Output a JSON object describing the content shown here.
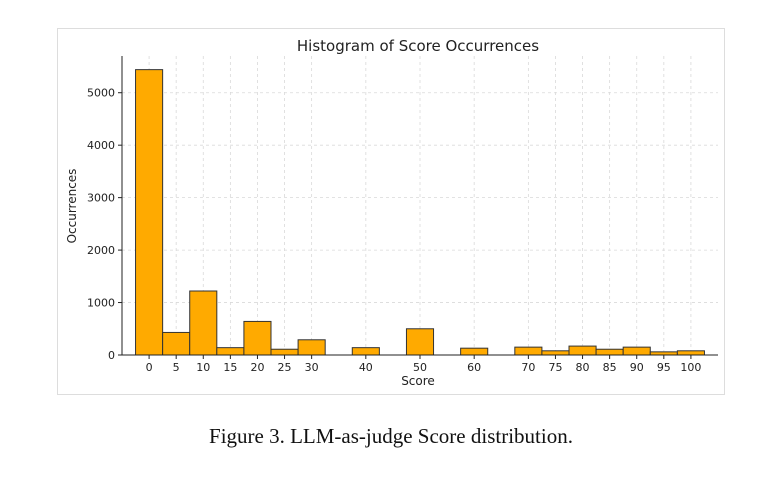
{
  "caption": "Figure 3. LLM-as-judge Score distribution.",
  "colors": {
    "bar_fill": "#FFAA00",
    "bar_edge": "#333333",
    "grid": "#d9d9d9",
    "axis": "#222222"
  },
  "chart_data": {
    "type": "bar",
    "title": "Histogram of Score Occurrences",
    "xlabel": "Score",
    "ylabel": "Occurrences",
    "xlim": [
      -5,
      105
    ],
    "ylim": [
      0,
      5700
    ],
    "xticks": [
      0,
      5,
      10,
      15,
      20,
      25,
      30,
      40,
      50,
      60,
      70,
      75,
      80,
      85,
      90,
      95,
      100
    ],
    "yticks": [
      0,
      1000,
      2000,
      3000,
      4000,
      5000
    ],
    "bin_width": 5,
    "grid": true,
    "x": [
      0,
      5,
      10,
      15,
      20,
      25,
      30,
      40,
      50,
      60,
      70,
      75,
      80,
      85,
      90,
      95,
      100
    ],
    "values": [
      5440,
      430,
      1220,
      140,
      640,
      110,
      290,
      140,
      500,
      130,
      150,
      80,
      170,
      110,
      150,
      60,
      80
    ]
  }
}
